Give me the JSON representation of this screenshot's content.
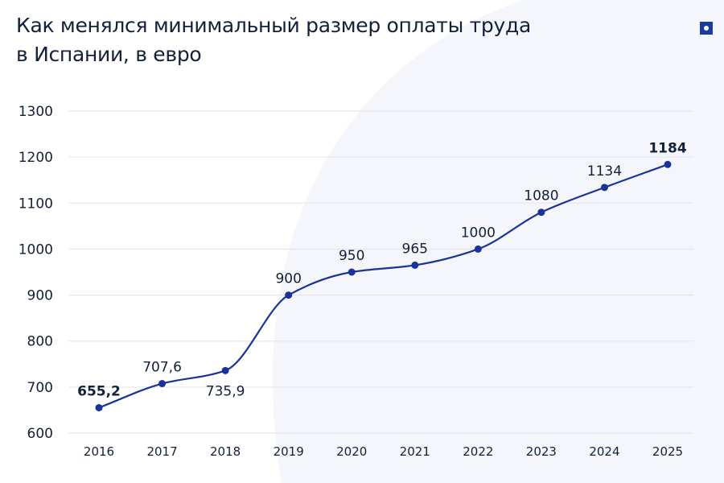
{
  "title": "Как менялся минимальный размер оплаты труда в Испании, в евро",
  "colors": {
    "line": "#1a3399",
    "text": "#13203a",
    "grid": "#e6e8ec",
    "logo": "#1a3aa0"
  },
  "logo_icon": "square-dot-logo",
  "chart_data": {
    "type": "line",
    "title": "Как менялся минимальный размер оплаты труда в Испании, в евро",
    "categories": [
      "2016",
      "2017",
      "2018",
      "2019",
      "2020",
      "2021",
      "2022",
      "2023",
      "2024",
      "2025"
    ],
    "values": [
      655.2,
      707.6,
      735.9,
      900,
      950,
      965,
      1000,
      1080,
      1134,
      1184
    ],
    "data_labels": [
      "655,2",
      "707,6",
      "735,9",
      "900",
      "950",
      "965",
      "1000",
      "1080",
      "1134",
      "1184"
    ],
    "bold_labels": [
      "655,2",
      "1184"
    ],
    "yticks": [
      "600",
      "700",
      "800",
      "900",
      "1000",
      "1100",
      "1200",
      "1300"
    ],
    "ylim": [
      600,
      1300
    ],
    "grid": true,
    "legend": "none"
  }
}
